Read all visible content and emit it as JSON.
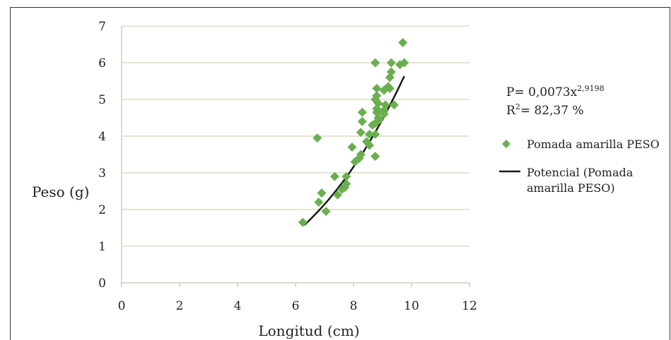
{
  "chart_data": {
    "type": "scatter",
    "title": "",
    "xlabel": "Longitud (cm)",
    "ylabel": "Peso (g)",
    "xlim": [
      0,
      12
    ],
    "ylim": [
      0,
      7
    ],
    "x_ticks": [
      "0",
      "2",
      "4",
      "6",
      "8",
      "10",
      "12"
    ],
    "y_ticks": [
      "0",
      "1",
      "2",
      "3",
      "4",
      "5",
      "6",
      "7"
    ],
    "grid": "horizontal",
    "legend_position": "right",
    "series": [
      {
        "name": "Pomada amarilla PESO",
        "kind": "scatter",
        "color": "#6aaf4f",
        "points": [
          [
            6.25,
            1.65
          ],
          [
            6.75,
            3.95
          ],
          [
            6.8,
            2.2
          ],
          [
            6.9,
            2.45
          ],
          [
            7.05,
            1.95
          ],
          [
            7.35,
            2.9
          ],
          [
            7.45,
            2.4
          ],
          [
            7.6,
            2.55
          ],
          [
            7.7,
            2.6
          ],
          [
            7.75,
            2.7
          ],
          [
            7.75,
            2.9
          ],
          [
            7.95,
            3.7
          ],
          [
            8.05,
            3.3
          ],
          [
            8.2,
            3.4
          ],
          [
            8.25,
            3.5
          ],
          [
            8.25,
            4.1
          ],
          [
            8.3,
            4.4
          ],
          [
            8.3,
            4.65
          ],
          [
            8.45,
            3.85
          ],
          [
            8.55,
            3.75
          ],
          [
            8.55,
            4.05
          ],
          [
            8.65,
            4.3
          ],
          [
            8.75,
            3.45
          ],
          [
            8.75,
            4.05
          ],
          [
            8.75,
            4.35
          ],
          [
            8.8,
            4.65
          ],
          [
            8.8,
            4.75
          ],
          [
            8.85,
            4.9
          ],
          [
            8.75,
            5.0
          ],
          [
            8.8,
            5.1
          ],
          [
            8.8,
            5.3
          ],
          [
            8.75,
            6.0
          ],
          [
            8.85,
            4.5
          ],
          [
            8.9,
            4.45
          ],
          [
            9.05,
            4.6
          ],
          [
            9.05,
            4.7
          ],
          [
            9.1,
            4.85
          ],
          [
            9.05,
            5.25
          ],
          [
            9.2,
            5.35
          ],
          [
            9.25,
            5.3
          ],
          [
            9.25,
            5.6
          ],
          [
            9.3,
            5.75
          ],
          [
            9.3,
            6.0
          ],
          [
            9.4,
            4.85
          ],
          [
            9.6,
            5.95
          ],
          [
            9.7,
            6.55
          ],
          [
            9.75,
            6.0
          ]
        ]
      },
      {
        "name": "Potencial (Pomada amarilla PESO)",
        "kind": "trendline",
        "color": "#1a1a1a",
        "equation": {
          "coef": 0.0073,
          "exponent": 2.9198
        },
        "x_range": [
          6.3,
          9.75
        ]
      }
    ],
    "annotations": {
      "equation_base": "P= 0,0073x",
      "equation_exp": "2,9198",
      "r2_base": "R",
      "r2_exp": "2",
      "r2_value": "= 82,37 %"
    },
    "legend": {
      "items": [
        {
          "label_lines": [
            "Pomada amarilla PESO"
          ],
          "marker": "diamond"
        },
        {
          "label_lines": [
            "Potencial (Pomada",
            "amarilla PESO)"
          ],
          "marker": "line"
        }
      ]
    }
  }
}
